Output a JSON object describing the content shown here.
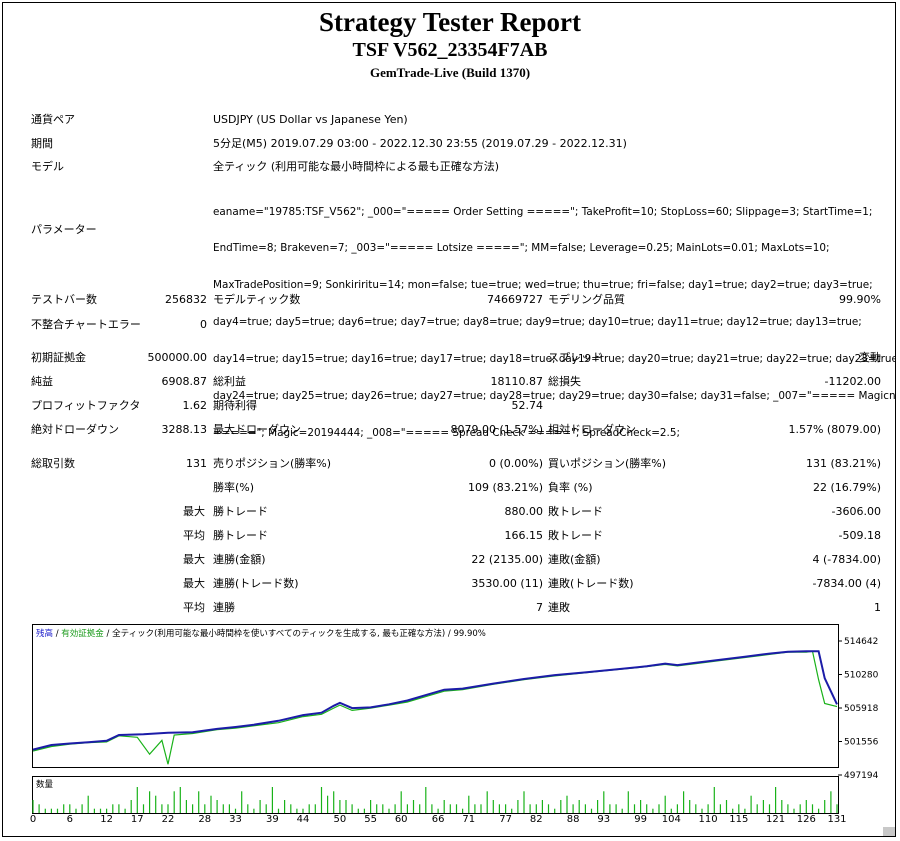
{
  "header": {
    "title": "Strategy Tester Report",
    "subtitle": "TSF V562_23354F7AB",
    "build": "GemTrade-Live (Build 1370)"
  },
  "info": {
    "symbol_label": "通貨ペア",
    "symbol_value": "USDJPY (US Dollar vs Japanese Yen)",
    "period_label": "期間",
    "period_value": "5分足(M5) 2019.07.29 03:00 - 2022.12.30 23:55 (2019.07.29 - 2022.12.31)",
    "model_label": "モデル",
    "model_value": "全ティック (利用可能な最小時間枠による最も正確な方法)",
    "params_label": "パラメーター",
    "params_lines": [
      "eaname=\"19785:TSF_V562\"; _000=\"===== Order Setting =====\"; TakeProfit=10; StopLoss=60; Slippage=3; StartTime=1;",
      "EndTime=8; Brakeven=7; _003=\"===== Lotsize =====\"; MM=false; Leverage=0.25; MainLots=0.01; MaxLots=10;",
      "MaxTradePosition=9; Sonkiriritu=14; mon=false; tue=true; wed=true; thu=true; fri=false; day1=true; day2=true; day3=true;",
      "day4=true; day5=true; day6=true; day7=true; day8=true; day9=true; day10=true; day11=true; day12=true; day13=true;",
      "day14=true; day15=true; day16=true; day17=true; day18=true; day19=true; day20=true; day21=true; day22=true; day23=true;",
      "day24=true; day25=true; day26=true; day27=true; day28=true; day29=true; day30=false; day31=false; _007=\"===== Magicnuber",
      "=====\"; Magic=20194444; _008=\"===== Spread Check =====\"; SpreadCheck=2.5;"
    ]
  },
  "stats": {
    "bars_label": "テストバー数",
    "bars_value": "256832",
    "ticks_label": "モデルティック数",
    "ticks_value": "74669727",
    "quality_label": "モデリング品質",
    "quality_value": "99.90%",
    "mismatch_label": "不整合チャートエラー",
    "mismatch_value": "0",
    "deposit_label": "初期証拠金",
    "deposit_value": "500000.00",
    "spread_label": "スプレッド",
    "spread_value": "変動",
    "net_label": "純益",
    "net_value": "6908.87",
    "gross_profit_label": "総利益",
    "gross_profit_value": "18110.87",
    "gross_loss_label": "総損失",
    "gross_loss_value": "-11202.00",
    "pf_label": "プロフィットファクタ",
    "pf_value": "1.62",
    "expected_label": "期待利得",
    "expected_value": "52.74",
    "abs_dd_label": "絶対ドローダウン",
    "abs_dd_value": "3288.13",
    "max_dd_label": "最大ドローダウン",
    "max_dd_value": "8079.00 (1.57%)",
    "rel_dd_label": "相対ドローダウン",
    "rel_dd_value": "1.57% (8079.00)",
    "total_trades_label": "総取引数",
    "total_trades_value": "131",
    "short_label": "売りポジション(勝率%)",
    "short_value": "0 (0.00%)",
    "long_label": "買いポジション(勝率%)",
    "long_value": "131 (83.21%)",
    "win_rate_label": "勝率(%)",
    "win_rate_value": "109 (83.21%)",
    "loss_rate_label": "負率 (%)",
    "loss_rate_value": "22 (16.79%)",
    "max_word": "最大",
    "avg_word": "平均",
    "largest_win_label": "勝トレード",
    "largest_win_value": "880.00",
    "largest_loss_label": "敗トレード",
    "largest_loss_value": "-3606.00",
    "avg_win_label": "勝トレード",
    "avg_win_value": "166.15",
    "avg_loss_label": "敗トレード",
    "avg_loss_value": "-509.18",
    "max_consec_wins_money_label": "連勝(金額)",
    "max_consec_wins_money_value": "22 (2135.00)",
    "max_consec_losses_money_label": "連敗(金額)",
    "max_consec_losses_money_value": "4 (-7834.00)",
    "max_consec_profit_label": "連勝(トレード数)",
    "max_consec_profit_value": "3530.00 (11)",
    "max_consec_loss_label": "連敗(トレード数)",
    "max_consec_loss_value": "-7834.00 (4)",
    "avg_consec_wins_label": "連勝",
    "avg_consec_wins_value": "7",
    "avg_consec_losses_label": "連敗",
    "avg_consec_losses_value": "1"
  },
  "chart_data": {
    "type": "line",
    "legend_balance": "残高",
    "legend_equity": "有効証拠金",
    "legend_model": "全ティック(利用可能な最小時間枠を使いすべてのティックを生成する, 最も正確な方法)",
    "legend_quality": "99.90%",
    "volume_label": "数量",
    "y_ticks": [
      "514642",
      "510280",
      "505918",
      "501556",
      "497194"
    ],
    "x_ticks": [
      "0",
      "6",
      "12",
      "17",
      "22",
      "28",
      "33",
      "39",
      "44",
      "50",
      "55",
      "60",
      "66",
      "71",
      "77",
      "82",
      "88",
      "93",
      "99",
      "104",
      "110",
      "115",
      "121",
      "126",
      "131"
    ],
    "ylim": [
      497194,
      516000
    ],
    "xlim": [
      0,
      131
    ],
    "balance": [
      [
        0,
        500500
      ],
      [
        3,
        501100
      ],
      [
        6,
        501300
      ],
      [
        9,
        501450
      ],
      [
        12,
        501650
      ],
      [
        14,
        502400
      ],
      [
        18,
        502500
      ],
      [
        22,
        502700
      ],
      [
        26,
        502750
      ],
      [
        30,
        503200
      ],
      [
        33,
        503450
      ],
      [
        36,
        503750
      ],
      [
        40,
        504250
      ],
      [
        44,
        505000
      ],
      [
        47,
        505300
      ],
      [
        49,
        506200
      ],
      [
        50,
        506600
      ],
      [
        52,
        505900
      ],
      [
        55,
        506000
      ],
      [
        58,
        506400
      ],
      [
        61,
        506900
      ],
      [
        64,
        507600
      ],
      [
        67,
        508300
      ],
      [
        70,
        508450
      ],
      [
        75,
        509100
      ],
      [
        80,
        509700
      ],
      [
        85,
        510200
      ],
      [
        90,
        510550
      ],
      [
        95,
        510950
      ],
      [
        100,
        511350
      ],
      [
        103,
        511700
      ],
      [
        105,
        511500
      ],
      [
        108,
        511800
      ],
      [
        112,
        512200
      ],
      [
        116,
        512600
      ],
      [
        120,
        513000
      ],
      [
        123,
        513250
      ],
      [
        126,
        513300
      ],
      [
        128,
        513300
      ],
      [
        129,
        509800
      ],
      [
        131,
        506400
      ]
    ],
    "equity": [
      [
        0,
        500300
      ],
      [
        3,
        500900
      ],
      [
        6,
        501200
      ],
      [
        9,
        501400
      ],
      [
        12,
        501500
      ],
      [
        14,
        502300
      ],
      [
        17,
        502100
      ],
      [
        19,
        499900
      ],
      [
        21,
        501700
      ],
      [
        22,
        498600
      ],
      [
        23,
        502400
      ],
      [
        26,
        502600
      ],
      [
        30,
        503100
      ],
      [
        33,
        503300
      ],
      [
        36,
        503600
      ],
      [
        40,
        504000
      ],
      [
        44,
        504800
      ],
      [
        47,
        505100
      ],
      [
        49,
        505900
      ],
      [
        50,
        506300
      ],
      [
        52,
        505600
      ],
      [
        55,
        505900
      ],
      [
        58,
        506300
      ],
      [
        61,
        506700
      ],
      [
        64,
        507400
      ],
      [
        67,
        508100
      ],
      [
        70,
        508300
      ],
      [
        75,
        509000
      ],
      [
        80,
        509600
      ],
      [
        85,
        510100
      ],
      [
        90,
        510500
      ],
      [
        95,
        510900
      ],
      [
        100,
        511300
      ],
      [
        103,
        511600
      ],
      [
        105,
        511400
      ],
      [
        108,
        511700
      ],
      [
        112,
        512100
      ],
      [
        116,
        512500
      ],
      [
        120,
        512900
      ],
      [
        123,
        513200
      ],
      [
        126,
        513200
      ],
      [
        127,
        513300
      ],
      [
        128,
        509600
      ],
      [
        129,
        506500
      ],
      [
        131,
        506100
      ]
    ],
    "volume": [
      3,
      2,
      1,
      1,
      1,
      2,
      2,
      1,
      2,
      4,
      1,
      1,
      1,
      2,
      2,
      1,
      3,
      6,
      2,
      5,
      4,
      2,
      2,
      5,
      6,
      3,
      2,
      5,
      2,
      4,
      3,
      2,
      2,
      1,
      5,
      2,
      1,
      3,
      2,
      6,
      1,
      3,
      2,
      1,
      1,
      2,
      2,
      6,
      4,
      5,
      3,
      3,
      2,
      1,
      1,
      3,
      2,
      2,
      1,
      2,
      5,
      2,
      3,
      2,
      6,
      2,
      1,
      3,
      2,
      2,
      1,
      4,
      2,
      2,
      5,
      3,
      2,
      2,
      1,
      3,
      5,
      2,
      2,
      3,
      2,
      1,
      3,
      4,
      2,
      3,
      2,
      1,
      3,
      5,
      2,
      2,
      1,
      5,
      2,
      3,
      2,
      1,
      2,
      4,
      1,
      2,
      5,
      3,
      2,
      1,
      2,
      6,
      2,
      3,
      1,
      2,
      1,
      4,
      2,
      3,
      2,
      6,
      3,
      2,
      1,
      2,
      3,
      2,
      1,
      3,
      5,
      2
    ]
  }
}
